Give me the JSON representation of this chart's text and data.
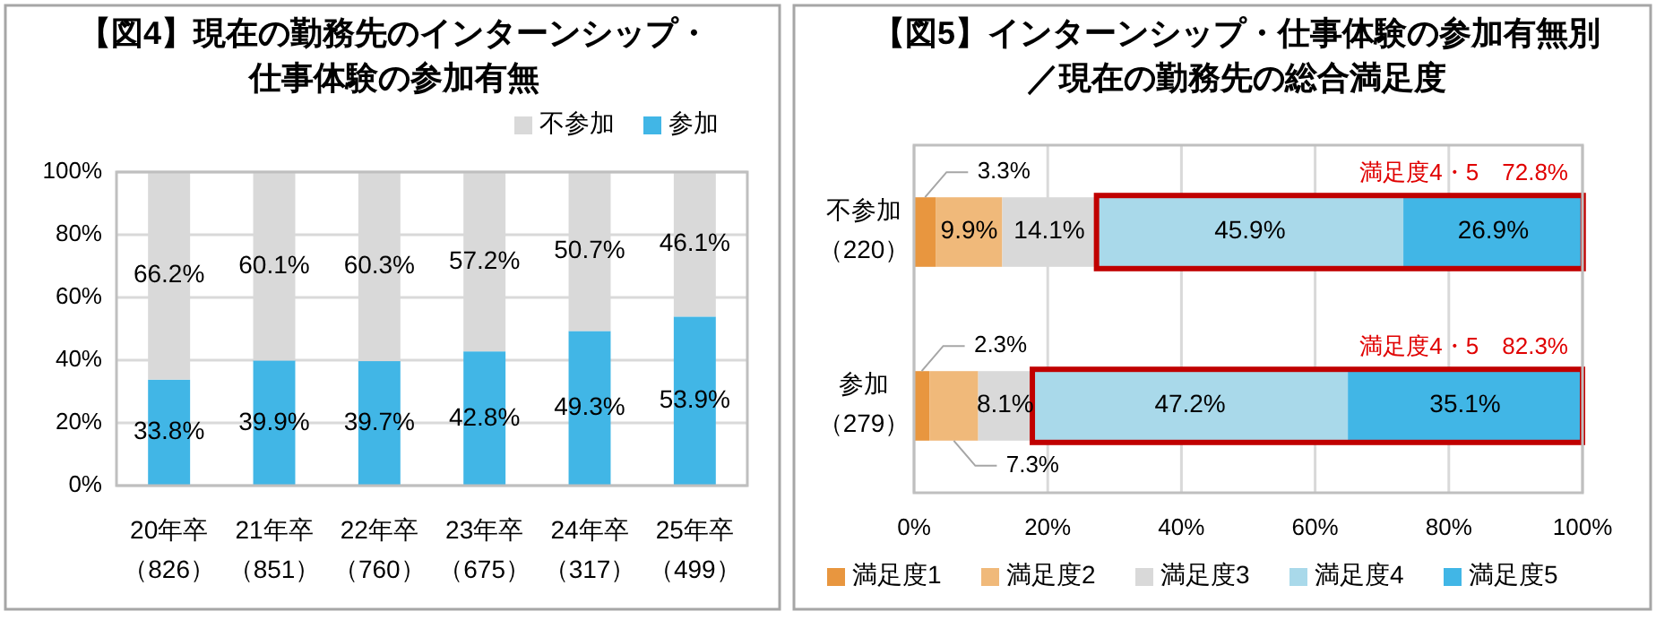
{
  "chart_data": [
    {
      "type": "bar",
      "stacked": true,
      "title": "【図4】現在の勤務先のインターンシップ・仕事体験の参加有無",
      "categories": [
        "20年卒（826）",
        "21年卒（851）",
        "22年卒（760）",
        "23年卒（675）",
        "24年卒（317）",
        "25年卒（499）"
      ],
      "series": [
        {
          "name": "参加",
          "color": "#41b6e6",
          "values": [
            33.8,
            39.9,
            39.7,
            42.8,
            49.3,
            53.9
          ],
          "value_labels": [
            "33.8%",
            "39.9%",
            "39.7%",
            "42.8%",
            "49.3%",
            "53.9%"
          ]
        },
        {
          "name": "不参加",
          "color": "#d9d9d9",
          "values": [
            66.2,
            60.1,
            60.3,
            57.2,
            50.7,
            46.1
          ],
          "value_labels": [
            "66.2%",
            "60.1%",
            "60.3%",
            "57.2%",
            "50.7%",
            "46.1%"
          ]
        }
      ],
      "ylim": [
        0,
        100
      ],
      "yticks": [
        {
          "value": 0,
          "label": "0%"
        },
        {
          "value": 20,
          "label": "20%"
        },
        {
          "value": 40,
          "label": "40%"
        },
        {
          "value": 60,
          "label": "60%"
        },
        {
          "value": 80,
          "label": "80%"
        },
        {
          "value": 100,
          "label": "100%"
        }
      ],
      "grid": "y",
      "legend": "top right"
    },
    {
      "type": "bar",
      "stacked": true,
      "orientation": "horizontal",
      "title": "【図5】インターンシップ・仕事体験の参加有無別／現在の勤務先の総合満足度",
      "categories": [
        "不参加（220）",
        "参加（279）"
      ],
      "series": [
        {
          "name": "満足度1",
          "color": "#e8963f",
          "values": [
            3.3,
            2.3
          ],
          "value_labels": [
            "3.3%",
            "2.3%"
          ]
        },
        {
          "name": "満足度2",
          "color": "#f0b97a",
          "values": [
            9.9,
            7.3
          ],
          "value_labels": [
            "9.9%",
            "7.3%"
          ]
        },
        {
          "name": "満足度3",
          "color": "#d9d9d9",
          "values": [
            14.1,
            8.1
          ],
          "value_labels": [
            "14.1%",
            "8.1%"
          ]
        },
        {
          "name": "満足度4",
          "color": "#a9d9ea",
          "values": [
            45.9,
            47.2
          ],
          "value_labels": [
            "45.9%",
            "47.2%"
          ]
        },
        {
          "name": "満足度5",
          "color": "#41b6e6",
          "values": [
            26.9,
            35.1
          ],
          "value_labels": [
            "26.9%",
            "35.1%"
          ]
        }
      ],
      "xlim": [
        0,
        100
      ],
      "xticks": [
        {
          "value": 0,
          "label": "0%"
        },
        {
          "value": 20,
          "label": "20%"
        },
        {
          "value": 40,
          "label": "40%"
        },
        {
          "value": 60,
          "label": "60%"
        },
        {
          "value": 80,
          "label": "80%"
        },
        {
          "value": 100,
          "label": "100%"
        }
      ],
      "grid": "x",
      "legend": "bottom",
      "annotations": [
        "満足度4・5　72.8%",
        "満足度4・5　82.3%"
      ]
    }
  ]
}
